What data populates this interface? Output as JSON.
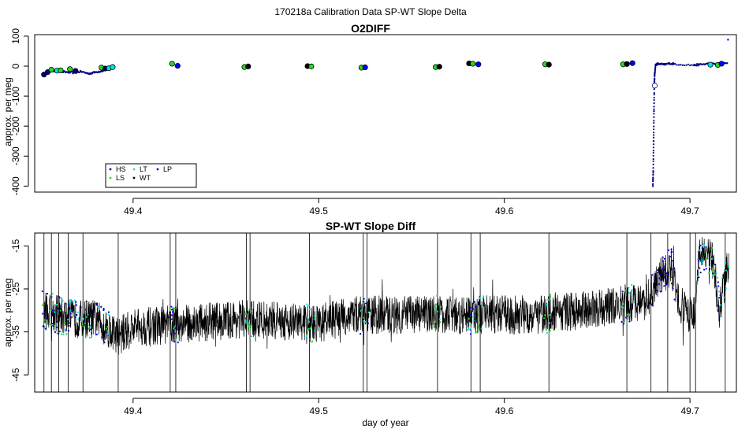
{
  "figure": {
    "title": "170218a   Calibration Data SP-WT Slope Delta",
    "xlabel": "day of year"
  },
  "chart_data": [
    {
      "type": "scatter",
      "title": "O2DIFF",
      "ylabel": "approx. per meg",
      "xlim": [
        49.347,
        49.725
      ],
      "ylim": [
        -420,
        105
      ],
      "x_ticks": [
        "49.4",
        "49.5",
        "49.6",
        "49.7"
      ],
      "x_tick_values": [
        49.4,
        49.5,
        49.6,
        49.7
      ],
      "y_ticks": [
        "100",
        "0",
        "-100",
        "-200",
        "-300",
        "-400"
      ],
      "y_tick_values": [
        100,
        0,
        -100,
        -200,
        -300,
        -400
      ],
      "legend": {
        "placement": "bottom-left",
        "items": [
          {
            "label": "HS",
            "color": "#000080"
          },
          {
            "label": "LT",
            "color": "#00e5e5"
          },
          {
            "label": "LP",
            "color": "#0000ff"
          },
          {
            "label": "LS",
            "color": "#22dd22"
          },
          {
            "label": "WT",
            "color": "#000000"
          }
        ]
      },
      "colors": {
        "HS": "#000080",
        "LS": "#22dd22",
        "LT": "#00e5e5",
        "LP": "#0000ff",
        "WT": "#000000"
      },
      "series": [
        {
          "name": "HS",
          "color": "#000080",
          "kind": "dots",
          "x": [
            49.352,
            49.356,
            49.36,
            49.364,
            49.368,
            49.372,
            49.376,
            49.38,
            49.384,
            49.68,
            49.6802,
            49.6804,
            49.6806,
            49.6808,
            49.681,
            49.6815,
            49.683,
            49.686,
            49.689,
            49.692,
            49.702,
            49.705,
            49.71,
            49.715,
            49.72
          ],
          "y": [
            -25,
            -15,
            -18,
            -20,
            -22,
            -18,
            -25,
            -20,
            -15,
            -400,
            -350,
            -250,
            -150,
            -60,
            -25,
            5,
            8,
            5,
            9,
            7,
            3,
            5,
            8,
            6,
            10
          ]
        },
        {
          "name": "circles",
          "x": [
            49.352,
            49.354,
            49.356,
            49.359,
            49.361,
            49.366,
            49.369,
            49.383,
            49.385,
            49.387,
            49.389,
            49.421,
            49.424,
            49.46,
            49.462,
            49.494,
            49.496,
            49.523,
            49.525,
            49.563,
            49.565,
            49.581,
            49.583,
            49.586,
            49.622,
            49.624,
            49.664,
            49.666,
            49.669,
            49.681,
            49.711,
            49.715,
            49.717
          ],
          "y": [
            -28,
            -20,
            -12,
            -15,
            -14,
            -10,
            -16,
            -5,
            -8,
            -7,
            -3,
            8,
            1,
            -3,
            -1,
            0,
            -1,
            -5,
            -4,
            -3,
            -2,
            9,
            8,
            6,
            6,
            5,
            6,
            7,
            10,
            -65,
            5,
            4,
            8
          ],
          "colors": [
            "#000080",
            "#000080",
            "#22dd22",
            "#00e5e5",
            "#22dd22",
            "#22dd22",
            "#000080",
            "#22dd22",
            "#000080",
            "#00e5e5",
            "#00e5e5",
            "#22dd22",
            "#0000ff",
            "#22dd22",
            "#000000",
            "#000000",
            "#22dd22",
            "#22dd22",
            "#0000ff",
            "#22dd22",
            "#000000",
            "#000000",
            "#22dd22",
            "#0000ff",
            "#22dd22",
            "#000000",
            "#22dd22",
            "#000000",
            "#0000ff",
            "#ffffff",
            "#00e5e5",
            "#22dd22",
            "#0000ff"
          ]
        },
        {
          "name": "outlier",
          "color": "#0000ff",
          "x": [
            49.7205
          ],
          "y": [
            88
          ]
        }
      ]
    },
    {
      "type": "line",
      "title": "SP-WT Slope Diff",
      "ylabel": "approx. per meg",
      "xlim": [
        49.347,
        49.725
      ],
      "ylim": [
        -49,
        -12
      ],
      "x_ticks": [
        "49.4",
        "49.5",
        "49.6",
        "49.7"
      ],
      "x_tick_values": [
        49.4,
        49.5,
        49.6,
        49.7
      ],
      "y_ticks": [
        "-15",
        "-25",
        "-35",
        "-45"
      ],
      "y_tick_values": [
        -15,
        -25,
        -35,
        -45
      ],
      "baseline": [
        [
          49.352,
          -30
        ],
        [
          49.368,
          -32
        ],
        [
          49.38,
          -32
        ],
        [
          49.392,
          -36
        ],
        [
          49.4,
          -34
        ],
        [
          49.43,
          -33
        ],
        [
          49.46,
          -32
        ],
        [
          49.5,
          -33
        ],
        [
          49.52,
          -31
        ],
        [
          49.55,
          -31
        ],
        [
          49.58,
          -31
        ],
        [
          49.62,
          -31
        ],
        [
          49.66,
          -29
        ],
        [
          49.675,
          -28
        ],
        [
          49.68,
          -26
        ],
        [
          49.684,
          -22
        ],
        [
          49.69,
          -20
        ],
        [
          49.6935,
          -28
        ],
        [
          49.7,
          -31
        ],
        [
          49.703,
          -30
        ],
        [
          49.705,
          -17
        ],
        [
          49.712,
          -18
        ],
        [
          49.716,
          -30
        ],
        [
          49.72,
          -20
        ]
      ],
      "noise_amplitude": 4.5,
      "spikes_x": [
        49.352,
        49.356,
        49.36,
        49.365,
        49.373,
        49.392,
        49.42,
        49.423,
        49.461,
        49.463,
        49.495,
        49.524,
        49.526,
        49.564,
        49.582,
        49.587,
        49.624,
        49.666,
        49.679,
        49.688,
        49.7,
        49.703,
        49.719
      ],
      "calibration_segments": [
        {
          "x0": 49.351,
          "x1": 49.387,
          "colors": [
            "#0000ff",
            "#22dd22",
            "#00e5e5",
            "#000080"
          ]
        },
        {
          "x0": 49.419,
          "x1": 49.425,
          "colors": [
            "#22dd22",
            "#0000ff"
          ]
        },
        {
          "x0": 49.459,
          "x1": 49.464,
          "colors": [
            "#22dd22",
            "#00e5e5"
          ]
        },
        {
          "x0": 49.493,
          "x1": 49.498,
          "colors": [
            "#22dd22",
            "#00e5e5"
          ]
        },
        {
          "x0": 49.522,
          "x1": 49.527,
          "colors": [
            "#22dd22",
            "#0000ff",
            "#00e5e5"
          ]
        },
        {
          "x0": 49.562,
          "x1": 49.566,
          "colors": [
            "#22dd22",
            "#00e5e5"
          ]
        },
        {
          "x0": 49.58,
          "x1": 49.589,
          "colors": [
            "#22dd22",
            "#0000ff",
            "#00e5e5"
          ]
        },
        {
          "x0": 49.621,
          "x1": 49.625,
          "colors": [
            "#22dd22",
            "#00e5e5"
          ]
        },
        {
          "x0": 49.663,
          "x1": 49.67,
          "colors": [
            "#22dd22",
            "#00e5e5",
            "#0000ff"
          ]
        },
        {
          "x0": 49.679,
          "x1": 49.692,
          "colors": [
            "#0000ff",
            "#000080"
          ]
        },
        {
          "x0": 49.704,
          "x1": 49.721,
          "colors": [
            "#0000ff",
            "#00e5e5",
            "#22dd22",
            "#000080"
          ]
        }
      ]
    }
  ]
}
